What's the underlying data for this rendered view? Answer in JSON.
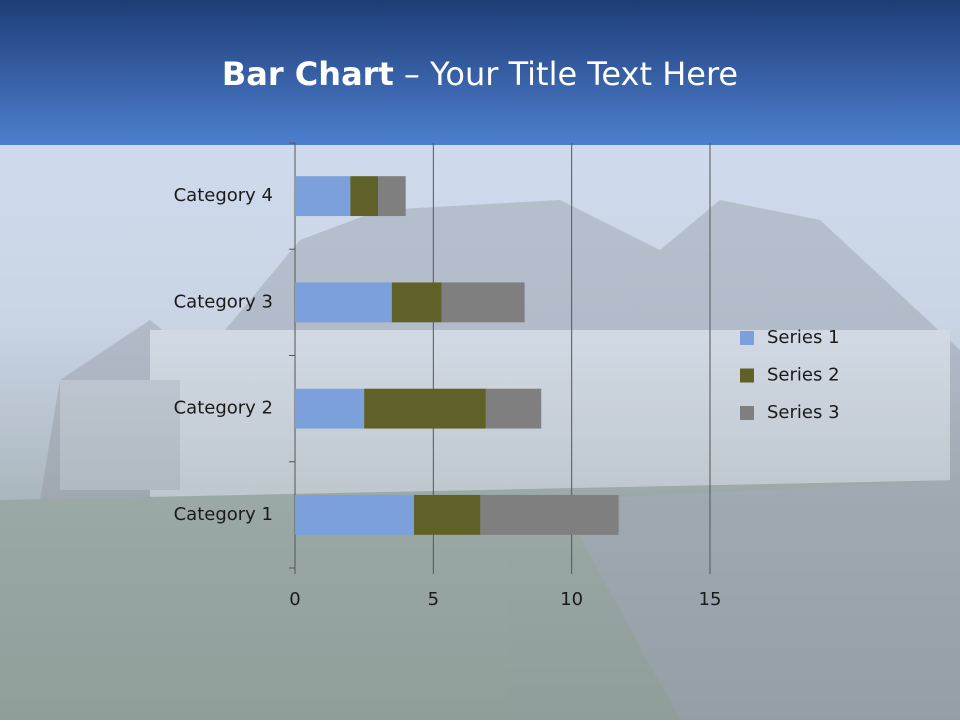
{
  "chart_data": {
    "type": "bar",
    "orientation": "horizontal",
    "stacked": true,
    "title": {
      "bold": "Bar Chart",
      "rest": "– Your Title Text Here"
    },
    "categories": [
      "Category 1",
      "Category 2",
      "Category 3",
      "Category 4"
    ],
    "series": [
      {
        "name": "Series 1",
        "color": "#7ba0dc",
        "values": [
          4.3,
          2.5,
          3.5,
          2
        ]
      },
      {
        "name": "Series 2",
        "color": "#5f6128",
        "values": [
          2.4,
          4.4,
          1.8,
          1
        ]
      },
      {
        "name": "Series 3",
        "color": "#7f7f7f",
        "values": [
          5,
          2,
          3,
          1
        ]
      }
    ],
    "xlim": [
      0,
      15
    ],
    "xticks": [
      0,
      5,
      10,
      15
    ],
    "grid": true,
    "legend": "right"
  }
}
